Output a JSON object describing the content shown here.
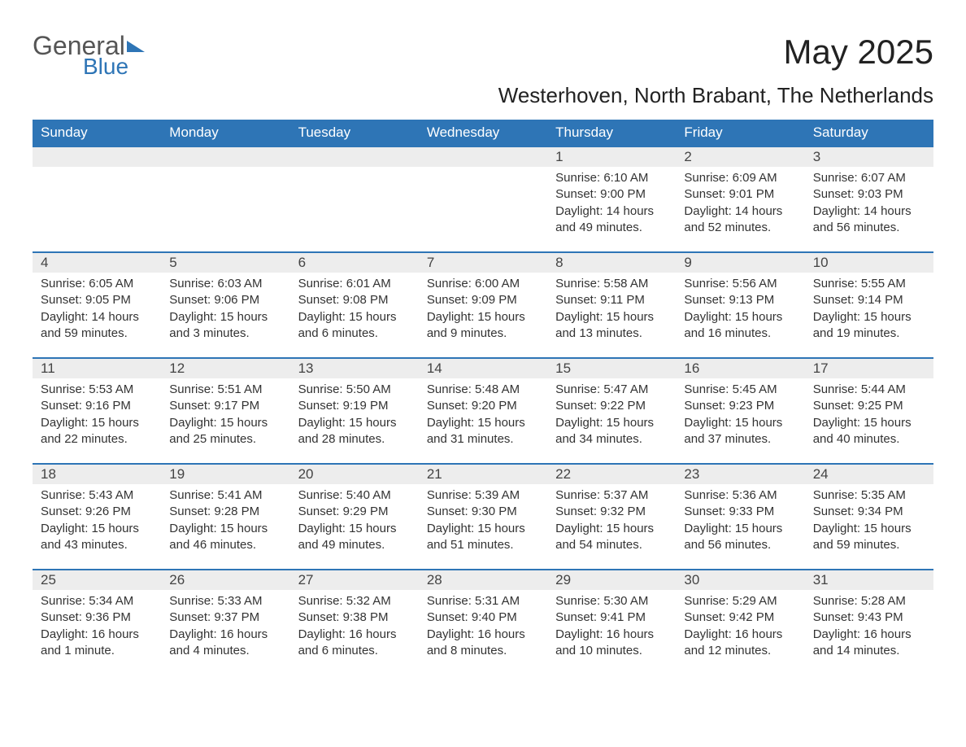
{
  "logo": {
    "word1": "General",
    "word2": "Blue"
  },
  "title": "May 2025",
  "location": "Westerhoven, North Brabant, The Netherlands",
  "header_bg": "#2e75b6",
  "header_fg": "#ffffff",
  "daynum_bg": "#ededed",
  "weekdays": [
    "Sunday",
    "Monday",
    "Tuesday",
    "Wednesday",
    "Thursday",
    "Friday",
    "Saturday"
  ],
  "weeks": [
    [
      null,
      null,
      null,
      null,
      {
        "n": "1",
        "sr": "6:10 AM",
        "ss": "9:00 PM",
        "dl": "14 hours and 49 minutes."
      },
      {
        "n": "2",
        "sr": "6:09 AM",
        "ss": "9:01 PM",
        "dl": "14 hours and 52 minutes."
      },
      {
        "n": "3",
        "sr": "6:07 AM",
        "ss": "9:03 PM",
        "dl": "14 hours and 56 minutes."
      }
    ],
    [
      {
        "n": "4",
        "sr": "6:05 AM",
        "ss": "9:05 PM",
        "dl": "14 hours and 59 minutes."
      },
      {
        "n": "5",
        "sr": "6:03 AM",
        "ss": "9:06 PM",
        "dl": "15 hours and 3 minutes."
      },
      {
        "n": "6",
        "sr": "6:01 AM",
        "ss": "9:08 PM",
        "dl": "15 hours and 6 minutes."
      },
      {
        "n": "7",
        "sr": "6:00 AM",
        "ss": "9:09 PM",
        "dl": "15 hours and 9 minutes."
      },
      {
        "n": "8",
        "sr": "5:58 AM",
        "ss": "9:11 PM",
        "dl": "15 hours and 13 minutes."
      },
      {
        "n": "9",
        "sr": "5:56 AM",
        "ss": "9:13 PM",
        "dl": "15 hours and 16 minutes."
      },
      {
        "n": "10",
        "sr": "5:55 AM",
        "ss": "9:14 PM",
        "dl": "15 hours and 19 minutes."
      }
    ],
    [
      {
        "n": "11",
        "sr": "5:53 AM",
        "ss": "9:16 PM",
        "dl": "15 hours and 22 minutes."
      },
      {
        "n": "12",
        "sr": "5:51 AM",
        "ss": "9:17 PM",
        "dl": "15 hours and 25 minutes."
      },
      {
        "n": "13",
        "sr": "5:50 AM",
        "ss": "9:19 PM",
        "dl": "15 hours and 28 minutes."
      },
      {
        "n": "14",
        "sr": "5:48 AM",
        "ss": "9:20 PM",
        "dl": "15 hours and 31 minutes."
      },
      {
        "n": "15",
        "sr": "5:47 AM",
        "ss": "9:22 PM",
        "dl": "15 hours and 34 minutes."
      },
      {
        "n": "16",
        "sr": "5:45 AM",
        "ss": "9:23 PM",
        "dl": "15 hours and 37 minutes."
      },
      {
        "n": "17",
        "sr": "5:44 AM",
        "ss": "9:25 PM",
        "dl": "15 hours and 40 minutes."
      }
    ],
    [
      {
        "n": "18",
        "sr": "5:43 AM",
        "ss": "9:26 PM",
        "dl": "15 hours and 43 minutes."
      },
      {
        "n": "19",
        "sr": "5:41 AM",
        "ss": "9:28 PM",
        "dl": "15 hours and 46 minutes."
      },
      {
        "n": "20",
        "sr": "5:40 AM",
        "ss": "9:29 PM",
        "dl": "15 hours and 49 minutes."
      },
      {
        "n": "21",
        "sr": "5:39 AM",
        "ss": "9:30 PM",
        "dl": "15 hours and 51 minutes."
      },
      {
        "n": "22",
        "sr": "5:37 AM",
        "ss": "9:32 PM",
        "dl": "15 hours and 54 minutes."
      },
      {
        "n": "23",
        "sr": "5:36 AM",
        "ss": "9:33 PM",
        "dl": "15 hours and 56 minutes."
      },
      {
        "n": "24",
        "sr": "5:35 AM",
        "ss": "9:34 PM",
        "dl": "15 hours and 59 minutes."
      }
    ],
    [
      {
        "n": "25",
        "sr": "5:34 AM",
        "ss": "9:36 PM",
        "dl": "16 hours and 1 minute."
      },
      {
        "n": "26",
        "sr": "5:33 AM",
        "ss": "9:37 PM",
        "dl": "16 hours and 4 minutes."
      },
      {
        "n": "27",
        "sr": "5:32 AM",
        "ss": "9:38 PM",
        "dl": "16 hours and 6 minutes."
      },
      {
        "n": "28",
        "sr": "5:31 AM",
        "ss": "9:40 PM",
        "dl": "16 hours and 8 minutes."
      },
      {
        "n": "29",
        "sr": "5:30 AM",
        "ss": "9:41 PM",
        "dl": "16 hours and 10 minutes."
      },
      {
        "n": "30",
        "sr": "5:29 AM",
        "ss": "9:42 PM",
        "dl": "16 hours and 12 minutes."
      },
      {
        "n": "31",
        "sr": "5:28 AM",
        "ss": "9:43 PM",
        "dl": "16 hours and 14 minutes."
      }
    ]
  ],
  "labels": {
    "sunrise": "Sunrise: ",
    "sunset": "Sunset: ",
    "daylight": "Daylight: "
  }
}
